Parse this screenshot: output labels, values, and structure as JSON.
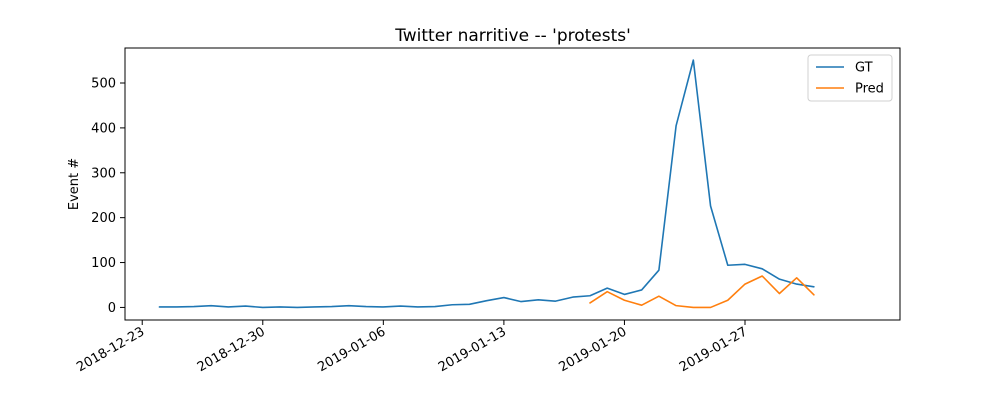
{
  "chart_data": {
    "type": "line",
    "title": "Twitter narritive -- 'protests'",
    "xlabel": "",
    "ylabel": "Event #",
    "xlim": [
      "2018-12-22",
      "2019-02-05"
    ],
    "ylim": [
      -28,
      578
    ],
    "x_ticks": [
      "2018-12-23",
      "2018-12-30",
      "2019-01-06",
      "2019-01-13",
      "2019-01-20",
      "2019-01-27"
    ],
    "y_ticks": [
      0,
      100,
      200,
      300,
      400,
      500
    ],
    "legend_position": "top-right",
    "grid": false,
    "series": [
      {
        "name": "GT",
        "color": "#1f77b4",
        "x": [
          "2018-12-24",
          "2018-12-25",
          "2018-12-26",
          "2018-12-27",
          "2018-12-28",
          "2018-12-29",
          "2018-12-30",
          "2018-12-31",
          "2019-01-01",
          "2019-01-02",
          "2019-01-03",
          "2019-01-04",
          "2019-01-05",
          "2019-01-06",
          "2019-01-07",
          "2019-01-08",
          "2019-01-09",
          "2019-01-10",
          "2019-01-11",
          "2019-01-12",
          "2019-01-13",
          "2019-01-14",
          "2019-01-15",
          "2019-01-16",
          "2019-01-17",
          "2019-01-18",
          "2019-01-19",
          "2019-01-20",
          "2019-01-21",
          "2019-01-22",
          "2019-01-23",
          "2019-01-24",
          "2019-01-25",
          "2019-01-26",
          "2019-01-27",
          "2019-01-28",
          "2019-01-29",
          "2019-01-30",
          "2019-01-31",
          "2019-02-01"
        ],
        "values": [
          1,
          1,
          2,
          4,
          1,
          3,
          0,
          1,
          0,
          1,
          2,
          4,
          2,
          1,
          3,
          1,
          2,
          6,
          7,
          15,
          22,
          13,
          17,
          14,
          23,
          26,
          43,
          29,
          39,
          83,
          405,
          551,
          226,
          94,
          96,
          86,
          63,
          52,
          46,
          null
        ]
      },
      {
        "name": "Pred",
        "color": "#ff7f0e",
        "x": [
          "2019-01-18",
          "2019-01-19",
          "2019-01-20",
          "2019-01-21",
          "2019-01-22",
          "2019-01-23",
          "2019-01-24",
          "2019-01-25",
          "2019-01-26",
          "2019-01-27",
          "2019-01-28",
          "2019-01-29",
          "2019-01-30",
          "2019-01-31"
        ],
        "values": [
          10,
          35,
          16,
          5,
          25,
          4,
          0,
          0,
          16,
          52,
          70,
          31,
          66,
          28
        ]
      }
    ]
  }
}
